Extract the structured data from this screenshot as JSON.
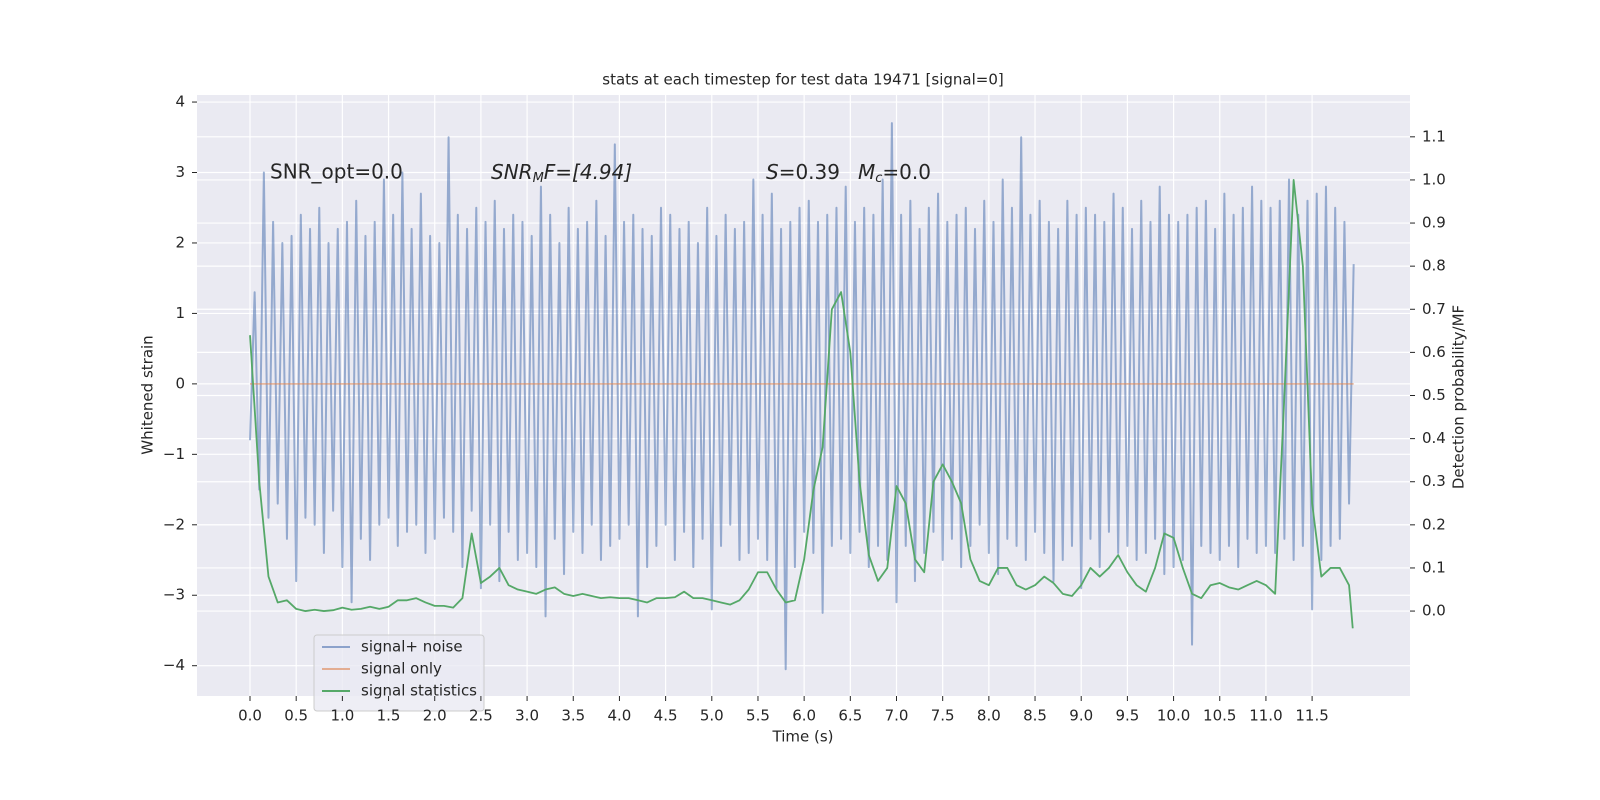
{
  "chart_data": {
    "type": "line",
    "title": "stats at each timestep for test data 19471 [signal=0]",
    "xlabel": "Time (s)",
    "ylabel": "Whitened strain",
    "y2label": "Detection probability/MF",
    "annotations": [
      "SNR_opt=0.0",
      [
        "SNR",
        "M",
        "F=[4.94]"
      ],
      [
        "S",
        "=0.39"
      ],
      [
        "M",
        "c",
        "=0.0"
      ]
    ],
    "xlim": [
      -0.574,
      12.56
    ],
    "ylim": [
      -4.43,
      4.1
    ],
    "y2lim": [
      -0.197,
      1.197
    ],
    "grid": true,
    "legend": "lower left",
    "xticks": [
      {
        "value": 0,
        "label": "0.0"
      },
      {
        "value": 0.5,
        "label": "0.5"
      },
      {
        "value": 1,
        "label": "1.0"
      },
      {
        "value": 1.5,
        "label": "1.5"
      },
      {
        "value": 2,
        "label": "2.0"
      },
      {
        "value": 2.5,
        "label": "2.5"
      },
      {
        "value": 3,
        "label": "3.0"
      },
      {
        "value": 3.5,
        "label": "3.5"
      },
      {
        "value": 4,
        "label": "4.0"
      },
      {
        "value": 4.5,
        "label": "4.5"
      },
      {
        "value": 5,
        "label": "5.0"
      },
      {
        "value": 5.5,
        "label": "5.5"
      },
      {
        "value": 6,
        "label": "6.0"
      },
      {
        "value": 6.5,
        "label": "6.5"
      },
      {
        "value": 7,
        "label": "7.0"
      },
      {
        "value": 7.5,
        "label": "7.5"
      },
      {
        "value": 8,
        "label": "8.0"
      },
      {
        "value": 8.5,
        "label": "8.5"
      },
      {
        "value": 9,
        "label": "9.0"
      },
      {
        "value": 9.5,
        "label": "9.5"
      },
      {
        "value": 10,
        "label": "10.0"
      },
      {
        "value": 10.5,
        "label": "10.5"
      },
      {
        "value": 11,
        "label": "11.0"
      },
      {
        "value": 11.5,
        "label": "11.5"
      }
    ],
    "yticks": [
      {
        "value": -4,
        "label": "−4"
      },
      {
        "value": -3,
        "label": "−3"
      },
      {
        "value": -2,
        "label": "−2"
      },
      {
        "value": -1,
        "label": "−1"
      },
      0,
      1,
      2,
      3,
      4
    ],
    "y2ticks": [
      {
        "value": 0,
        "label": "0.0"
      },
      {
        "value": 0.1,
        "label": "0.1"
      },
      {
        "value": 0.2,
        "label": "0.2"
      },
      {
        "value": 0.3,
        "label": "0.3"
      },
      {
        "value": 0.4,
        "label": "0.4"
      },
      {
        "value": 0.5,
        "label": "0.5"
      },
      {
        "value": 0.6,
        "label": "0.6"
      },
      {
        "value": 0.7,
        "label": "0.7"
      },
      {
        "value": 0.8,
        "label": "0.8"
      },
      {
        "value": 0.9,
        "label": "0.9"
      },
      {
        "value": 1,
        "label": "1.0"
      },
      {
        "value": 1.1,
        "label": "1.1"
      }
    ],
    "series": [
      {
        "name": "signal+ noise",
        "color": "#4c72b0",
        "x": [
          0,
          0.05,
          0.1,
          0.15,
          0.2,
          0.25,
          0.3,
          0.35,
          0.4,
          0.45,
          0.5,
          0.55,
          0.6,
          0.65,
          0.7,
          0.75,
          0.8,
          0.85,
          0.9,
          0.95,
          1,
          1.05,
          1.1,
          1.15,
          1.2,
          1.25,
          1.3,
          1.35,
          1.4,
          1.45,
          1.5,
          1.55,
          1.6,
          1.65,
          1.7,
          1.75,
          1.8,
          1.85,
          1.9,
          1.95,
          2,
          2.05,
          2.1,
          2.15,
          2.2,
          2.25,
          2.3,
          2.35,
          2.4,
          2.45,
          2.5,
          2.55,
          2.6,
          2.65,
          2.7,
          2.75,
          2.8,
          2.85,
          2.9,
          2.95,
          3,
          3.05,
          3.1,
          3.15,
          3.2,
          3.25,
          3.3,
          3.35,
          3.4,
          3.45,
          3.5,
          3.55,
          3.6,
          3.65,
          3.7,
          3.75,
          3.8,
          3.85,
          3.9,
          3.95,
          4,
          4.05,
          4.1,
          4.15,
          4.2,
          4.25,
          4.3,
          4.35,
          4.4,
          4.45,
          4.5,
          4.55,
          4.6,
          4.65,
          4.7,
          4.75,
          4.8,
          4.85,
          4.9,
          4.95,
          5,
          5.05,
          5.1,
          5.15,
          5.2,
          5.25,
          5.3,
          5.35,
          5.4,
          5.45,
          5.5,
          5.55,
          5.6,
          5.65,
          5.7,
          5.75,
          5.8,
          5.85,
          5.9,
          5.95,
          6,
          6.05,
          6.1,
          6.15,
          6.2,
          6.25,
          6.3,
          6.35,
          6.4,
          6.45,
          6.5,
          6.55,
          6.6,
          6.65,
          6.7,
          6.75,
          6.8,
          6.85,
          6.9,
          6.95,
          7,
          7.05,
          7.1,
          7.15,
          7.2,
          7.25,
          7.3,
          7.35,
          7.4,
          7.45,
          7.5,
          7.55,
          7.6,
          7.65,
          7.7,
          7.75,
          7.8,
          7.85,
          7.9,
          7.95,
          8,
          8.05,
          8.1,
          8.15,
          8.2,
          8.25,
          8.3,
          8.35,
          8.4,
          8.45,
          8.5,
          8.55,
          8.6,
          8.65,
          8.7,
          8.75,
          8.8,
          8.85,
          8.9,
          8.95,
          9,
          9.05,
          9.1,
          9.15,
          9.2,
          9.25,
          9.3,
          9.35,
          9.4,
          9.45,
          9.5,
          9.55,
          9.6,
          9.65,
          9.7,
          9.75,
          9.8,
          9.85,
          9.9,
          9.95,
          10,
          10.05,
          10.1,
          10.15,
          10.2,
          10.25,
          10.3,
          10.35,
          10.4,
          10.45,
          10.5,
          10.55,
          10.6,
          10.65,
          10.7,
          10.75,
          10.8,
          10.85,
          10.9,
          10.95,
          11,
          11.05,
          11.1,
          11.15,
          11.2,
          11.25,
          11.3,
          11.35,
          11.4,
          11.45,
          11.5,
          11.55,
          11.6,
          11.65,
          11.7,
          11.75,
          11.8,
          11.85,
          11.9,
          11.95
        ],
        "values": [
          -0.8,
          1.3,
          -1.5,
          3.0,
          -1.9,
          2.3,
          -1.7,
          2.0,
          -2.2,
          2.1,
          -2.8,
          2.4,
          -1.9,
          2.2,
          -2.0,
          2.5,
          -2.4,
          2.0,
          -1.8,
          2.2,
          -2.6,
          2.3,
          -3.1,
          2.6,
          -2.2,
          2.1,
          -2.5,
          2.3,
          -2.0,
          2.9,
          -1.9,
          2.4,
          -2.3,
          3.0,
          -2.1,
          2.2,
          -2.0,
          2.7,
          -2.4,
          2.1,
          -2.2,
          2.0,
          -1.9,
          3.5,
          -2.1,
          2.4,
          -2.6,
          2.2,
          -1.8,
          2.5,
          -2.9,
          2.3,
          -2.0,
          2.6,
          -2.8,
          2.2,
          -2.1,
          2.4,
          -2.5,
          2.3,
          -2.4,
          2.1,
          -2.6,
          2.8,
          -3.3,
          2.4,
          -2.2,
          2.0,
          -2.7,
          2.5,
          -2.1,
          2.2,
          -2.4,
          2.3,
          -2.0,
          2.6,
          -2.5,
          2.1,
          -2.3,
          3.4,
          -2.2,
          2.3,
          -2.0,
          2.4,
          -3.3,
          2.2,
          -2.6,
          2.1,
          -2.3,
          2.5,
          -2.0,
          2.4,
          -2.5,
          2.2,
          -2.1,
          2.3,
          -2.6,
          2.0,
          -2.2,
          2.5,
          -3.2,
          2.1,
          -2.3,
          2.4,
          -2.0,
          2.2,
          -2.5,
          2.3,
          -2.4,
          2.9,
          -2.2,
          2.4,
          -2.5,
          2.7,
          -2.9,
          2.2,
          -4.05,
          2.3,
          -2.6,
          2.5,
          -2.1,
          2.6,
          -2.4,
          2.3,
          -3.25,
          2.4,
          -2.3,
          2.5,
          -2.2,
          2.8,
          -2.4,
          2.3,
          -2.1,
          2.5,
          -2.6,
          2.4,
          -2.3,
          2.9,
          -2.5,
          3.7,
          -3.1,
          2.4,
          -2.3,
          2.6,
          -2.8,
          2.2,
          -2.4,
          2.5,
          -2.1,
          2.7,
          -2.5,
          2.3,
          -2.2,
          2.4,
          -2.6,
          2.5,
          -2.3,
          2.2,
          -2.0,
          2.6,
          -2.4,
          2.3,
          -2.7,
          2.9,
          -2.2,
          2.5,
          -2.3,
          3.5,
          -2.5,
          2.4,
          -2.1,
          2.6,
          -2.4,
          2.3,
          -2.8,
          2.2,
          -2.5,
          2.6,
          -2.3,
          2.4,
          -2.9,
          2.5,
          -2.2,
          2.4,
          -2.6,
          2.3,
          -2.1,
          2.7,
          -2.4,
          2.5,
          -2.3,
          2.2,
          -2.5,
          2.6,
          -2.4,
          2.3,
          -2.2,
          2.8,
          -2.7,
          2.4,
          -2.6,
          2.3,
          -2.5,
          2.4,
          -3.7,
          2.5,
          -2.3,
          2.6,
          -2.4,
          2.2,
          -2.5,
          2.7,
          -2.3,
          2.4,
          -2.6,
          2.5,
          -2.2,
          2.8,
          -2.4,
          2.6,
          -2.3,
          2.5,
          -2.4,
          2.6,
          -2.2,
          2.9,
          -2.5,
          2.4,
          -2.3,
          2.6,
          -3.2,
          2.7,
          -2.5,
          2.8,
          -2.3,
          2.5,
          -2.2,
          2.3,
          -1.7,
          1.7
        ]
      },
      {
        "name": "signal only",
        "color": "#dd8452",
        "x": [
          0,
          11.95
        ],
        "values": [
          0,
          0
        ]
      },
      {
        "name": "signal statistics",
        "color": "#55a868",
        "axis": "y2",
        "x": [
          0,
          0.1,
          0.2,
          0.3,
          0.4,
          0.5,
          0.6,
          0.7,
          0.8,
          0.9,
          1,
          1.1,
          1.2,
          1.3,
          1.4,
          1.5,
          1.6,
          1.7,
          1.8,
          1.9,
          2,
          2.1,
          2.2,
          2.3,
          2.4,
          2.5,
          2.6,
          2.7,
          2.8,
          2.9,
          3,
          3.1,
          3.2,
          3.3,
          3.4,
          3.5,
          3.6,
          3.7,
          3.8,
          3.9,
          4,
          4.1,
          4.2,
          4.3,
          4.4,
          4.5,
          4.6,
          4.7,
          4.8,
          4.9,
          5,
          5.1,
          5.2,
          5.3,
          5.4,
          5.5,
          5.6,
          5.7,
          5.8,
          5.9,
          6,
          6.1,
          6.2,
          6.3,
          6.4,
          6.5,
          6.6,
          6.7,
          6.8,
          6.9,
          7,
          7.1,
          7.2,
          7.3,
          7.4,
          7.5,
          7.6,
          7.7,
          7.8,
          7.9,
          8,
          8.1,
          8.2,
          8.3,
          8.4,
          8.5,
          8.6,
          8.7,
          8.8,
          8.9,
          9,
          9.1,
          9.2,
          9.3,
          9.4,
          9.5,
          9.6,
          9.7,
          9.8,
          9.9,
          10,
          10.1,
          10.2,
          10.3,
          10.4,
          10.5,
          10.6,
          10.7,
          10.8,
          10.9,
          11,
          11.1,
          11.2,
          11.3,
          11.4,
          11.5,
          11.6,
          11.7,
          11.8,
          11.9,
          11.94
        ],
        "values": [
          0.64,
          0.3,
          0.08,
          0.02,
          0.025,
          0.005,
          0,
          0.003,
          0,
          0.002,
          0.008,
          0.003,
          0.005,
          0.01,
          0.005,
          0.01,
          0.025,
          0.025,
          0.03,
          0.02,
          0.012,
          0.012,
          0.008,
          0.03,
          0.18,
          0.065,
          0.08,
          0.1,
          0.06,
          0.05,
          0.045,
          0.04,
          0.05,
          0.055,
          0.04,
          0.035,
          0.04,
          0.035,
          0.03,
          0.032,
          0.03,
          0.03,
          0.025,
          0.02,
          0.03,
          0.03,
          0.032,
          0.045,
          0.03,
          0.03,
          0.025,
          0.02,
          0.015,
          0.025,
          0.05,
          0.09,
          0.09,
          0.05,
          0.02,
          0.025,
          0.12,
          0.28,
          0.38,
          0.7,
          0.74,
          0.6,
          0.3,
          0.13,
          0.07,
          0.1,
          0.29,
          0.25,
          0.12,
          0.09,
          0.3,
          0.34,
          0.3,
          0.25,
          0.12,
          0.07,
          0.06,
          0.1,
          0.1,
          0.06,
          0.05,
          0.06,
          0.08,
          0.065,
          0.04,
          0.035,
          0.06,
          0.1,
          0.08,
          0.1,
          0.13,
          0.09,
          0.06,
          0.045,
          0.1,
          0.18,
          0.17,
          0.1,
          0.04,
          0.03,
          0.06,
          0.065,
          0.055,
          0.05,
          0.06,
          0.07,
          0.06,
          0.04,
          0.5,
          1.0,
          0.8,
          0.25,
          0.08,
          0.1,
          0.1,
          0.06,
          -0.04
        ]
      }
    ]
  }
}
